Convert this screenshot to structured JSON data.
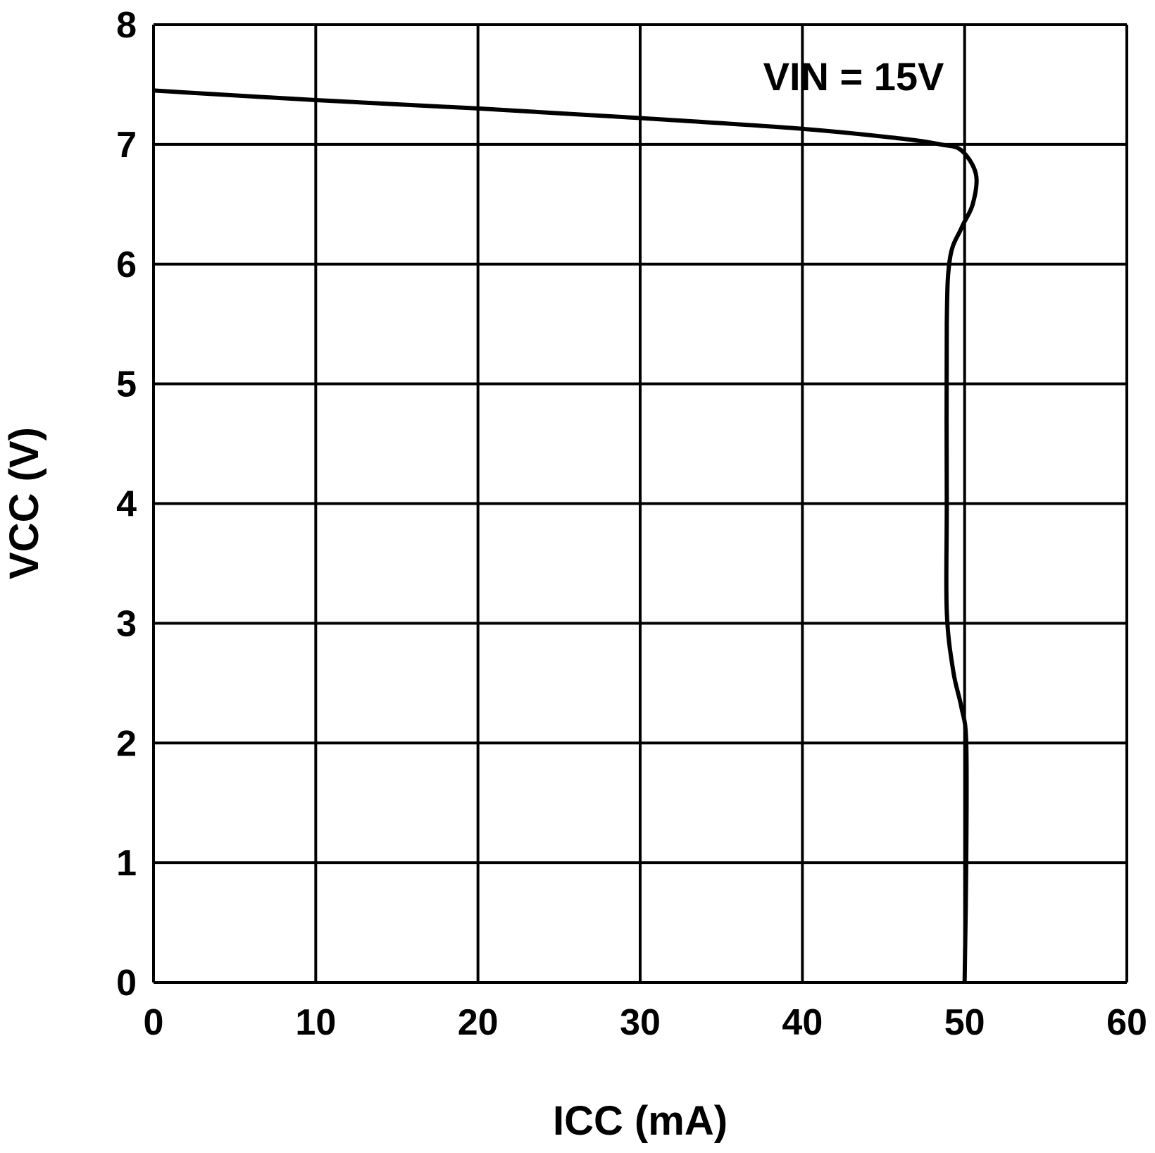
{
  "chart_data": {
    "type": "line",
    "title": "",
    "xlabel": "ICC (mA)",
    "ylabel": "VCC (V)",
    "xlim": [
      0,
      60
    ],
    "ylim": [
      0,
      8
    ],
    "xticks": [
      "0",
      "10",
      "20",
      "30",
      "40",
      "50",
      "60"
    ],
    "yticks": [
      "0",
      "1",
      "2",
      "3",
      "4",
      "5",
      "6",
      "7",
      "8"
    ],
    "grid": true,
    "annotation": "VIN = 15V",
    "series": [
      {
        "name": "VIN = 15V",
        "color": "#000000",
        "x": [
          0,
          10,
          20,
          30,
          40,
          46,
          48.5,
          49.8,
          50.7,
          50.5,
          49.8,
          49.1,
          48.9,
          48.9,
          48.9,
          49.3,
          49.8,
          50.1,
          50.1,
          50.0
        ],
        "y": [
          7.45,
          7.37,
          7.3,
          7.22,
          7.13,
          7.05,
          7.0,
          6.95,
          6.75,
          6.5,
          6.3,
          6.05,
          5.5,
          4.0,
          3.1,
          2.6,
          2.3,
          2.0,
          1.0,
          0.0
        ]
      }
    ]
  }
}
